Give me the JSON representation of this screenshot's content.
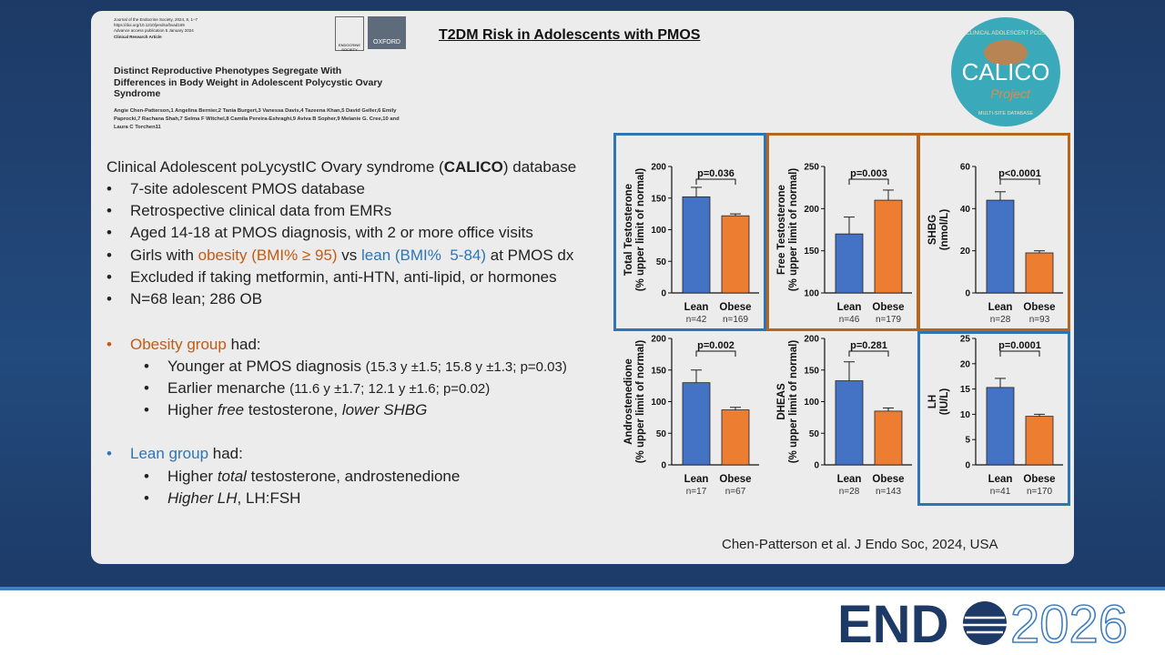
{
  "paper": {
    "journal": "Journal of the Endocrine Society, 2024, 8, 1–7",
    "doi": "https://doi.org/10.1210/jendso/bvad169",
    "advance": "Advance access publication 5 January 2024",
    "article_type": "Clinical Research Article",
    "title": "Distinct Reproductive Phenotypes Segregate With Differences in Body Weight in Adolescent Polycystic Ovary Syndrome",
    "authors": "Angie Chen-Patterson,1 Angelina Bernier,2 Tania Burgert,3 Vanessa Davis,4 Tazeena Khan,5 David Geller,6 Emily Paprocki,7 Rachana Shah,7 Selma F Witchel,8 Camila Pereira-Eshraghi,9 Aviva B Sopher,9 Melanie G. Cree,10 and Laura C Torchen11",
    "publisher_left": "ENDOCRINE SOCIETY",
    "publisher_right": "OXFORD"
  },
  "slide_title": "T2DM Risk in Adolescents with PMOS",
  "logo": {
    "top": "CLINICAL ADOLESCENT PCOS",
    "name": "CALICO",
    "script": "Project",
    "bottom": "MULTI-SITE DATABASE"
  },
  "intro": [
    "Clinical Adolescent poLycystIC Ovary syndrome (",
    "CALICO",
    ") database"
  ],
  "bullets": [
    [
      "7-site adolescent PMOS database"
    ],
    [
      "Retrospective clinical data from EMRs"
    ],
    [
      "Aged 14-18 at PMOS diagnosis, with 2 or more office visits"
    ],
    [
      "Girls with ",
      "obesity (BMI% ≥ 95)",
      " vs ",
      "lean (BMI%  5-84)",
      " at PMOS dx"
    ],
    [
      "Excluded if taking metformin, anti-HTN, anti-lipid, or hormones"
    ],
    [
      "N=68 lean; 286 OB"
    ]
  ],
  "obese_group": {
    "heading": [
      "Obesity group",
      " had:"
    ],
    "items": [
      [
        "Younger at PMOS diagnosis ",
        "(15.3 y ±1.5; 15.8 y ±1.3; p=0.03)"
      ],
      [
        "Earlier menarche ",
        "(11.6 y ±1.7; 12.1 y ±1.6; p=0.02)"
      ],
      [
        "Higher ",
        "free",
        " testosterone, ",
        "lower SHBG"
      ]
    ]
  },
  "lean_group": {
    "heading": [
      "Lean group",
      " had:"
    ],
    "items": [
      [
        "Higher ",
        "total",
        " testosterone, androstenedione"
      ],
      [
        "Higher LH",
        ", LH:FSH"
      ]
    ]
  },
  "citation": "Chen-Patterson et al. J Endo Soc, 2024, USA",
  "brand": {
    "left": "END",
    "right": "2026"
  },
  "chart_data": [
    {
      "type": "bar",
      "ylabel": [
        "Total Testosterone",
        "(% upper limit of normal)"
      ],
      "categories": [
        "Lean",
        "Obese"
      ],
      "n": [
        "n=42",
        "n=169"
      ],
      "values": [
        152,
        122
      ],
      "errors": [
        15,
        3
      ],
      "colors": [
        "#4472c4",
        "#ed7d31"
      ],
      "ylim": [
        0,
        200
      ],
      "yticks": [
        0,
        50,
        100,
        150,
        200
      ],
      "annotation": "p=0.036",
      "frame": "#2e75b6"
    },
    {
      "type": "bar",
      "ylabel": [
        "Free Testosterone",
        "(% upper limit of normal)"
      ],
      "categories": [
        "Lean",
        "Obese"
      ],
      "n": [
        "n=46",
        "n=179"
      ],
      "values": [
        170,
        210
      ],
      "errors": [
        20,
        12
      ],
      "colors": [
        "#4472c4",
        "#ed7d31"
      ],
      "ylim": [
        100,
        250
      ],
      "yticks": [
        100,
        150,
        200,
        250
      ],
      "annotation": "p=0.003",
      "frame": "#b5651d"
    },
    {
      "type": "bar",
      "ylabel": [
        "SHBG",
        "(nmol/L)"
      ],
      "categories": [
        "Lean",
        "Obese"
      ],
      "n": [
        "n=28",
        "n=93"
      ],
      "values": [
        44,
        19
      ],
      "errors": [
        4,
        1
      ],
      "colors": [
        "#4472c4",
        "#ed7d31"
      ],
      "ylim": [
        0,
        60
      ],
      "yticks": [
        0,
        20,
        40,
        60
      ],
      "annotation": "p<0.0001",
      "frame": "#b5651d"
    },
    {
      "type": "bar",
      "ylabel": [
        "Androstenedione",
        "(% upper limit of normal)"
      ],
      "categories": [
        "Lean",
        "Obese"
      ],
      "n": [
        "n=17",
        "n=67"
      ],
      "values": [
        130,
        87
      ],
      "errors": [
        20,
        4
      ],
      "colors": [
        "#4472c4",
        "#ed7d31"
      ],
      "ylim": [
        0,
        200
      ],
      "yticks": [
        0,
        50,
        100,
        150,
        200
      ],
      "annotation": "p=0.002"
    },
    {
      "type": "bar",
      "ylabel": [
        "DHEAS",
        "(% upper limit of normal)"
      ],
      "categories": [
        "Lean",
        "Obese"
      ],
      "n": [
        "n=28",
        "n=143"
      ],
      "values": [
        133,
        85
      ],
      "errors": [
        30,
        5
      ],
      "colors": [
        "#4472c4",
        "#ed7d31"
      ],
      "ylim": [
        0,
        200
      ],
      "yticks": [
        0,
        50,
        100,
        150,
        200
      ],
      "annotation": "p=0.281"
    },
    {
      "type": "bar",
      "ylabel": [
        "LH",
        "(IU/L)"
      ],
      "categories": [
        "Lean",
        "Obese"
      ],
      "n": [
        "n=41",
        "n=170"
      ],
      "values": [
        15.3,
        9.6
      ],
      "errors": [
        1.8,
        0.4
      ],
      "colors": [
        "#4472c4",
        "#ed7d31"
      ],
      "ylim": [
        0,
        25
      ],
      "yticks": [
        0,
        5,
        10,
        15,
        20,
        25
      ],
      "annotation": "p=0.0001",
      "frame": "#2e75b6"
    }
  ]
}
